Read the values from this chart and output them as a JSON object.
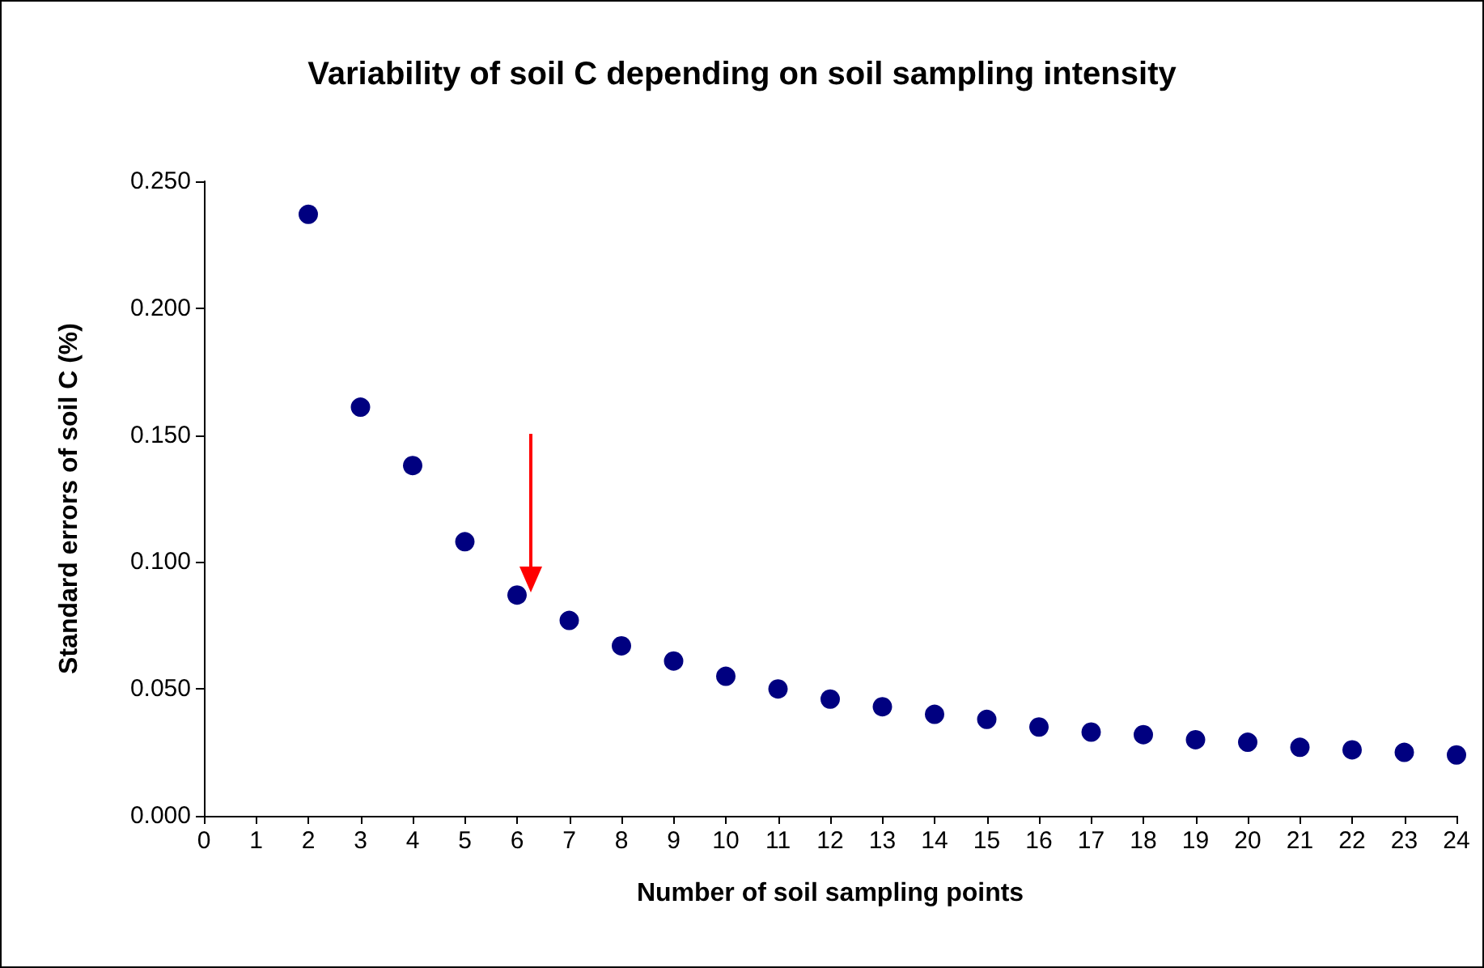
{
  "chart_data": {
    "type": "scatter",
    "title": "Variability of soil C depending on soil sampling intensity",
    "xlabel": "Number of soil sampling points",
    "ylabel": "Standard errors of soil C (%)",
    "x": [
      2,
      3,
      4,
      5,
      6,
      7,
      8,
      9,
      10,
      11,
      12,
      13,
      14,
      15,
      16,
      17,
      18,
      19,
      20,
      21,
      22,
      23,
      24
    ],
    "series": [
      {
        "color": "#000080",
        "values": [
          0.237,
          0.161,
          0.138,
          0.108,
          0.087,
          0.077,
          0.067,
          0.061,
          0.055,
          0.05,
          0.046,
          0.043,
          0.04,
          0.038,
          0.035,
          0.033,
          0.032,
          0.03,
          0.029,
          0.027,
          0.026,
          0.025,
          0.024
        ]
      }
    ],
    "xlim": [
      0,
      24
    ],
    "xticks": [
      0,
      1,
      2,
      3,
      4,
      5,
      6,
      7,
      8,
      9,
      10,
      11,
      12,
      13,
      14,
      15,
      16,
      17,
      18,
      19,
      20,
      21,
      22,
      23,
      24
    ],
    "ylim": [
      0,
      0.25
    ],
    "yticks": [
      {
        "value": 0,
        "label": "0.000"
      },
      {
        "value": 0.05,
        "label": "0.050"
      },
      {
        "value": 0.1,
        "label": "0.100"
      },
      {
        "value": 0.15,
        "label": "0.150"
      },
      {
        "value": 0.2,
        "label": "0.200"
      },
      {
        "value": 0.25,
        "label": "0.250"
      }
    ],
    "grid": false,
    "marker": "circle"
  }
}
